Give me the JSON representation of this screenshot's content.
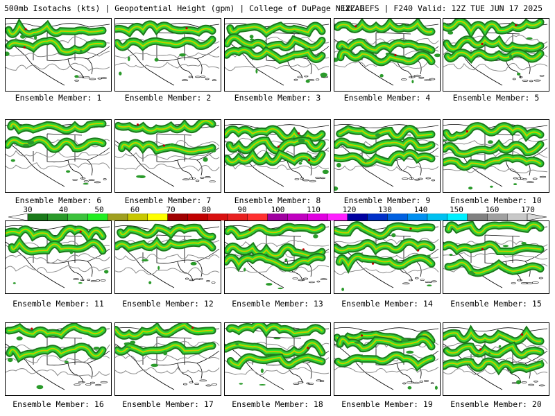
{
  "header": {
    "left": "500mb Isotachs (kts) | Geopotential Height (gpm) | College of DuPage NEXLAB",
    "right": "12Z GEFS | F240 Valid: 12Z TUE JUN 17 2025"
  },
  "panels": [
    {
      "label": "Ensemble Member: 1"
    },
    {
      "label": "Ensemble Member: 2"
    },
    {
      "label": "Ensemble Member: 3"
    },
    {
      "label": "Ensemble Member: 4"
    },
    {
      "label": "Ensemble Member: 5"
    },
    {
      "label": "Ensemble Member: 6"
    },
    {
      "label": "Ensemble Member: 7"
    },
    {
      "label": "Ensemble Member: 8"
    },
    {
      "label": "Ensemble Member: 9"
    },
    {
      "label": "Ensemble Member: 10"
    },
    {
      "label": "Ensemble Member: 11"
    },
    {
      "label": "Ensemble Member: 12"
    },
    {
      "label": "Ensemble Member: 13"
    },
    {
      "label": "Ensemble Member: 14"
    },
    {
      "label": "Ensemble Member: 15"
    },
    {
      "label": "Ensemble Member: 16"
    },
    {
      "label": "Ensemble Member: 17"
    },
    {
      "label": "Ensemble Member: 18"
    },
    {
      "label": "Ensemble Member: 19"
    },
    {
      "label": "Ensemble Member: 20"
    }
  ],
  "colorbar": {
    "labels": [
      "30",
      "40",
      "50",
      "60",
      "70",
      "80",
      "90",
      "100",
      "110",
      "120",
      "130",
      "140",
      "150",
      "160",
      "170"
    ],
    "colors": [
      "#1a7a1a",
      "#2a9a2a",
      "#3cc23c",
      "#22ee22",
      "#a0a020",
      "#c8c800",
      "#ffff00",
      "#a00000",
      "#c00000",
      "#d81010",
      "#e82020",
      "#ff3030",
      "#a000a0",
      "#c000c0",
      "#e000e0",
      "#ff20ff",
      "#0000a0",
      "#0030c8",
      "#0060e0",
      "#0090f0",
      "#00c0f0",
      "#00f0ff",
      "#808080",
      "#a0a0a0",
      "#c8c8c8"
    ]
  }
}
